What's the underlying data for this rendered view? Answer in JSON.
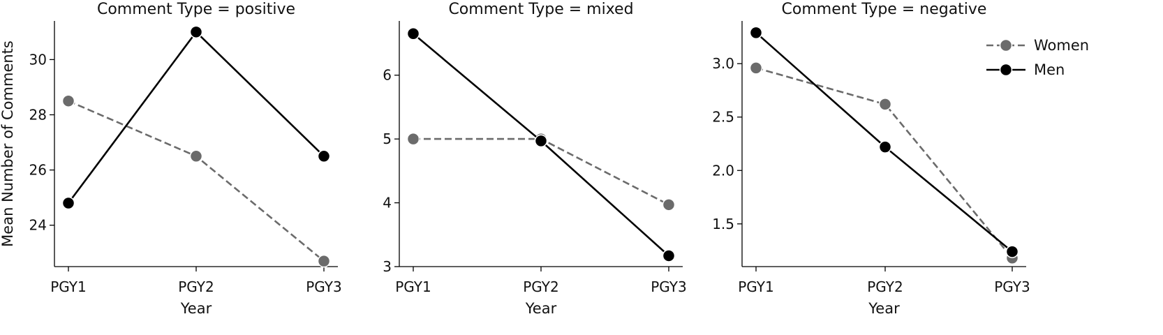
{
  "chart_data": [
    {
      "type": "line",
      "title": "Comment Type = positive",
      "xlabel": "Year",
      "ylabel": "Mean Number of Comments",
      "categories": [
        "PGY1",
        "PGY2",
        "PGY3"
      ],
      "ylim": [
        22.5,
        31.4
      ],
      "yticks": [
        24,
        26,
        28,
        30
      ],
      "ytick_labels": [
        "24",
        "26",
        "28",
        "30"
      ],
      "series": [
        {
          "name": "Women",
          "values": [
            28.5,
            26.5,
            22.7
          ]
        },
        {
          "name": "Men",
          "values": [
            24.8,
            31.0,
            26.5
          ]
        }
      ]
    },
    {
      "type": "line",
      "title": "Comment Type = mixed",
      "xlabel": "Year",
      "ylabel": "",
      "categories": [
        "PGY1",
        "PGY2",
        "PGY3"
      ],
      "ylim": [
        3.0,
        6.85
      ],
      "yticks": [
        3,
        4,
        5,
        6
      ],
      "ytick_labels": [
        "3",
        "4",
        "5",
        "6"
      ],
      "series": [
        {
          "name": "Women",
          "values": [
            5.0,
            5.0,
            3.97
          ]
        },
        {
          "name": "Men",
          "values": [
            6.65,
            4.97,
            3.17
          ]
        }
      ]
    },
    {
      "type": "line",
      "title": "Comment Type = negative",
      "xlabel": "Year",
      "ylabel": "",
      "categories": [
        "PGY1",
        "PGY2",
        "PGY3"
      ],
      "ylim": [
        1.1,
        3.4
      ],
      "yticks": [
        1.5,
        2.0,
        2.5,
        3.0
      ],
      "ytick_labels": [
        "1.5",
        "2.0",
        "2.5",
        "3.0"
      ],
      "series": [
        {
          "name": "Women",
          "values": [
            2.96,
            2.62,
            1.18
          ]
        },
        {
          "name": "Men",
          "values": [
            3.29,
            2.22,
            1.24
          ]
        }
      ]
    }
  ],
  "legend": {
    "placement": "top-right",
    "items": [
      {
        "label": "Women",
        "color": "#6b6b6b",
        "dashed": true
      },
      {
        "label": "Men",
        "color": "#000000",
        "dashed": false
      }
    ]
  },
  "colors": {
    "women": "#6b6b6b",
    "men": "#000000"
  }
}
